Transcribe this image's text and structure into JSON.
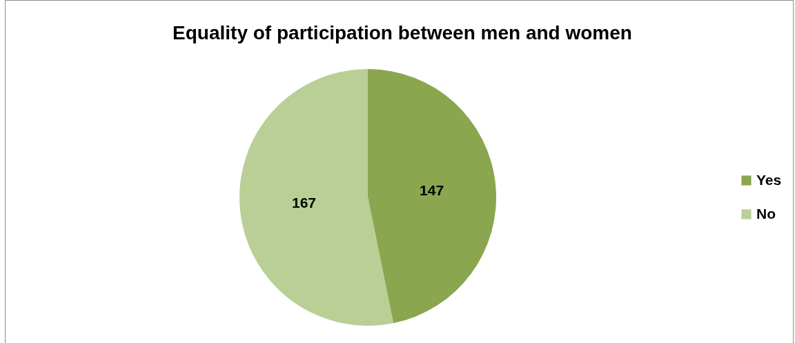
{
  "chart_data": {
    "type": "pie",
    "title": "Equality of participation between men and women",
    "categories": [
      "Yes",
      "No"
    ],
    "values": [
      147,
      167
    ],
    "colors": [
      "#8aa64e",
      "#b9cf96"
    ],
    "data_labels": true,
    "legend": "right"
  }
}
